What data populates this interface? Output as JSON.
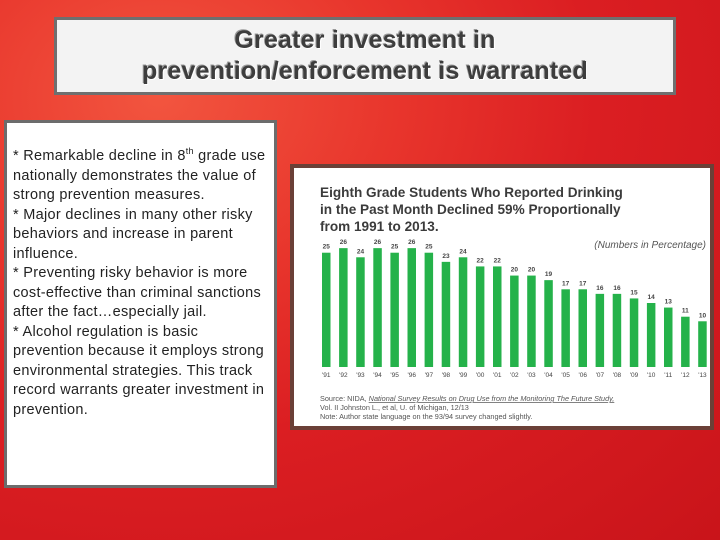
{
  "slide": {
    "title_line1": "Greater investment in",
    "title_line2": "prevention/enforcement is warranted",
    "bullets": [
      {
        "pre": "*  Remarkable decline in 8",
        "sup": "th",
        "post": " grade use nationally demonstrates the value of strong prevention measures."
      },
      {
        "pre": "*  Major declines in many other risky behaviors and increase in parent influence.",
        "sup": "",
        "post": ""
      },
      {
        "pre": "*  Preventing risky behavior is more cost-effective than criminal sanctions after the fact…especially jail.",
        "sup": "",
        "post": ""
      },
      {
        "pre": "*  Alcohol regulation is basic prevention because it employs strong environmental strategies. This track record warrants greater investment in prevention.",
        "sup": "",
        "post": ""
      }
    ]
  },
  "chart_data": {
    "type": "bar",
    "title_lines": [
      "Eighth Grade Students Who Reported Drinking",
      "in the Past Month Declined 59% Proportionally",
      "from 1991 to 2013."
    ],
    "units_note": "(Numbers in Percentage)",
    "categories": [
      "'91",
      "'92",
      "'93",
      "'94",
      "'95",
      "'96",
      "'97",
      "'98",
      "'99",
      "'00",
      "'01",
      "'02",
      "'03",
      "'04",
      "'05",
      "'06",
      "'07",
      "'08",
      "'09",
      "'10",
      "'11",
      "'12",
      "'13"
    ],
    "values": [
      25,
      26,
      24,
      26,
      25,
      26,
      25,
      23,
      24,
      22,
      22,
      20,
      20,
      19,
      17,
      17,
      16,
      16,
      15,
      14,
      13,
      11,
      10
    ],
    "ylim": [
      0,
      28
    ],
    "bar_color": "#25b24a",
    "title_color": "#3b3b3b",
    "note_color": "#555555",
    "source_line1_pre": "Source: NIDA, ",
    "source_line1_link": "National Survey Results on Drug Use from the Monitoring The Future Study,",
    "source_line2": "Vol. II Johnston L., et al, U. of Michigan, 12/13",
    "source_line3": "Note: Author state language on the 93/94 survey changed slightly."
  }
}
